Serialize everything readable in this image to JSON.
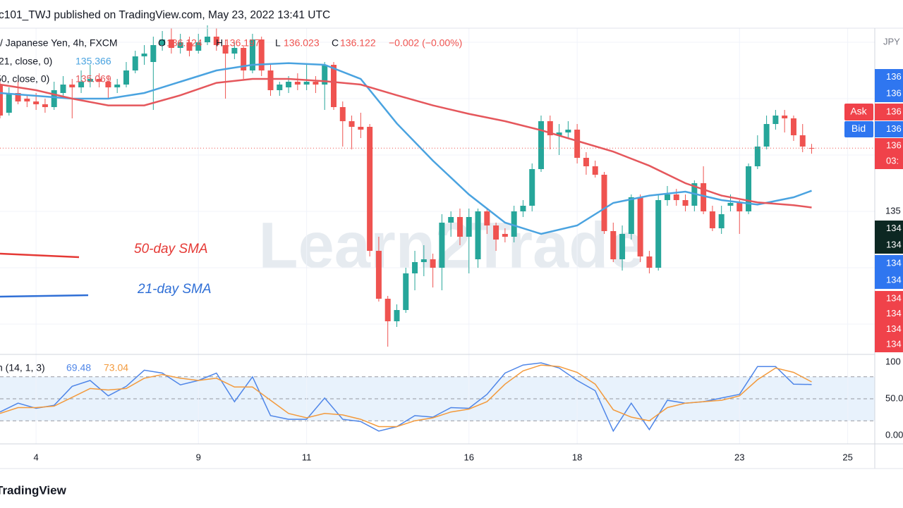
{
  "chart_data": {
    "type": "candlestick",
    "header": "c101_TWJ published on TradingView.com, May 23, 2022 13:41 UTC",
    "symbol_text": "/ Japanese Yen, 4h, FXCM",
    "ohlc_letters": [
      "O",
      "H",
      "L",
      "C"
    ],
    "change": "−0.002 (−0.00%)",
    "axis_unit": "JPY",
    "up_color": "#26a69a",
    "down_color": "#ef5350",
    "x": [
      -4,
      -3,
      -2,
      -1,
      0,
      1,
      2,
      3,
      4,
      5,
      6,
      7,
      8,
      9,
      10,
      11,
      12,
      13,
      14,
      15,
      16,
      17,
      18,
      19,
      20,
      21,
      22,
      23,
      24,
      25,
      26,
      27,
      28,
      29,
      30,
      31,
      32,
      33,
      34,
      35,
      36,
      37,
      38,
      39,
      40,
      41,
      42,
      43,
      44,
      45,
      46,
      47,
      48,
      49,
      50,
      51,
      52,
      53,
      54,
      55,
      56,
      57,
      58,
      59,
      60,
      61,
      62,
      63,
      64,
      65,
      66,
      67,
      68,
      69,
      70,
      71,
      72,
      73,
      74,
      75,
      76,
      77,
      78,
      79,
      80,
      81,
      82,
      83,
      84,
      85,
      86
    ],
    "open": [
      137.25,
      136.75,
      137.1,
      137.0,
      136.95,
      136.9,
      136.85,
      137.1,
      137.25,
      137.2,
      137.3,
      137.35,
      137.3,
      137.2,
      137.25,
      137.5,
      137.75,
      137.65,
      137.95,
      138.05,
      137.9,
      138.0,
      137.85,
      138.0,
      138.1,
      137.95,
      137.8,
      137.9,
      137.5,
      138.05,
      137.5,
      137.15,
      137.2,
      137.3,
      137.25,
      137.3,
      137.25,
      137.6,
      136.85,
      136.6,
      136.5,
      136.5,
      134.3,
      133.45,
      133.05,
      133.25,
      133.9,
      134.1,
      134.15,
      134.0,
      134.8,
      134.9,
      134.55,
      134.15,
      135.0,
      134.75,
      134.6,
      134.55,
      135.0,
      135.1,
      135.75,
      136.6,
      136.35,
      136.4,
      136.45,
      135.95,
      135.8,
      135.65,
      134.65,
      134.15,
      134.6,
      135.25,
      134.2,
      134.0,
      135.2,
      135.3,
      135.2,
      135.1,
      135.5,
      135.0,
      134.7,
      135.1,
      135.15,
      135.0,
      135.8,
      136.15,
      136.55,
      136.7,
      136.65,
      136.35,
      136.124
    ],
    "high": [
      137.35,
      137.2,
      137.3,
      137.05,
      137.1,
      137.0,
      137.3,
      137.4,
      137.35,
      137.5,
      137.6,
      137.45,
      137.4,
      137.35,
      137.65,
      137.85,
      137.95,
      138.1,
      138.2,
      138.25,
      138.15,
      138.1,
      138.15,
      138.3,
      138.25,
      138.05,
      138.0,
      137.95,
      138.15,
      138.1,
      137.6,
      137.3,
      137.4,
      137.45,
      137.6,
      137.4,
      137.65,
      137.65,
      136.95,
      136.7,
      136.75,
      136.55,
      134.55,
      133.5,
      133.35,
      134.0,
      134.3,
      134.4,
      134.25,
      134.95,
      135.0,
      135.05,
      135.05,
      135.05,
      135.05,
      134.8,
      134.7,
      135.1,
      135.2,
      135.85,
      136.7,
      136.7,
      136.55,
      136.6,
      136.55,
      136.05,
      135.9,
      135.7,
      134.8,
      134.75,
      135.3,
      135.3,
      134.3,
      135.3,
      135.45,
      135.4,
      135.3,
      135.55,
      135.8,
      135.1,
      135.1,
      135.3,
      135.2,
      135.85,
      136.35,
      136.7,
      136.8,
      136.8,
      136.7,
      136.55,
      136.197
    ],
    "low": [
      136.65,
      136.7,
      136.9,
      136.85,
      136.8,
      136.75,
      136.8,
      137.0,
      136.65,
      137.1,
      137.2,
      137.2,
      137.0,
      137.1,
      137.2,
      137.45,
      137.6,
      136.8,
      137.85,
      137.8,
      137.8,
      137.75,
      137.8,
      137.95,
      137.85,
      137.0,
      137.7,
      137.35,
      137.45,
      137.4,
      137.05,
      137.05,
      137.1,
      137.15,
      137.15,
      137.1,
      136.8,
      136.8,
      136.15,
      136.1,
      136.3,
      134.2,
      133.4,
      132.6,
      132.95,
      133.2,
      133.6,
      133.85,
      133.65,
      133.6,
      134.55,
      134.4,
      133.9,
      134.0,
      134.6,
      134.3,
      134.45,
      134.45,
      134.9,
      135.0,
      135.7,
      136.1,
      136.0,
      136.3,
      135.85,
      135.65,
      135.6,
      134.6,
      134.1,
      133.95,
      134.5,
      134.1,
      133.9,
      133.95,
      135.1,
      135.1,
      135.0,
      135.0,
      134.95,
      134.65,
      134.6,
      135.0,
      134.6,
      134.95,
      135.75,
      136.1,
      136.45,
      136.4,
      136.25,
      136.05,
      136.023
    ],
    "close": [
      136.7,
      137.1,
      136.95,
      136.95,
      136.9,
      136.85,
      137.15,
      137.25,
      137.2,
      137.3,
      137.35,
      137.3,
      137.2,
      137.25,
      137.5,
      137.75,
      137.8,
      137.95,
      138.05,
      137.9,
      138.0,
      137.85,
      138.0,
      138.1,
      137.95,
      137.8,
      137.9,
      137.5,
      138.05,
      137.5,
      137.15,
      137.25,
      137.3,
      137.25,
      137.3,
      137.25,
      137.6,
      136.85,
      136.6,
      136.5,
      136.45,
      134.3,
      133.45,
      133.05,
      133.25,
      133.9,
      134.1,
      134.15,
      134.0,
      134.8,
      134.9,
      134.55,
      134.9,
      135.0,
      134.75,
      134.5,
      134.55,
      135.0,
      135.1,
      135.75,
      136.6,
      136.35,
      136.4,
      136.45,
      135.95,
      135.8,
      135.65,
      134.65,
      134.15,
      134.6,
      135.25,
      134.2,
      134.0,
      135.2,
      135.3,
      135.2,
      135.1,
      135.5,
      135.0,
      134.7,
      134.95,
      135.15,
      135.0,
      135.8,
      136.15,
      136.55,
      136.7,
      136.65,
      136.35,
      136.15,
      136.122
    ],
    "xlim": [
      -4,
      93
    ],
    "xticks": [
      {
        "value": 0,
        "label": "4"
      },
      {
        "value": 18,
        "label": "9"
      },
      {
        "value": 30,
        "label": "11"
      },
      {
        "value": 48,
        "label": "16"
      },
      {
        "value": 60,
        "label": "18"
      },
      {
        "value": 78,
        "label": "23"
      },
      {
        "value": 90,
        "label": "25"
      }
    ],
    "ylim": [
      132.4625,
      138.25
    ],
    "yticks": [
      135
    ],
    "ygrid": [
      133,
      134,
      136,
      137,
      138
    ],
    "last_price_line": true,
    "sma": [
      {
        "name": "21, close, 0)",
        "color": "#4aa3e0",
        "x": [
          -4,
          0,
          4,
          8,
          12,
          16,
          20,
          24,
          28,
          32,
          36,
          40,
          44,
          48,
          52,
          56,
          60,
          64,
          68,
          72,
          76,
          80,
          84,
          86
        ],
        "values": [
          137.1,
          137.05,
          137.0,
          137.0,
          137.1,
          137.3,
          137.5,
          137.6,
          137.63,
          137.6,
          137.35,
          136.56,
          135.9,
          135.3,
          134.8,
          134.6,
          134.75,
          135.15,
          135.28,
          135.35,
          135.2,
          135.12,
          135.25,
          135.366
        ]
      },
      {
        "name": "50, close, 0)",
        "color": "#e5575c",
        "x": [
          -4,
          0,
          4,
          8,
          12,
          16,
          20,
          24,
          28,
          32,
          36,
          40,
          44,
          48,
          52,
          56,
          60,
          64,
          68,
          72,
          76,
          80,
          84,
          86
        ],
        "values": [
          137.25,
          137.15,
          137.0,
          136.88,
          136.88,
          137.06,
          137.28,
          137.35,
          137.35,
          137.31,
          137.25,
          137.06,
          136.88,
          136.73,
          136.6,
          136.44,
          136.25,
          136.06,
          135.81,
          135.5,
          135.28,
          135.16,
          135.11,
          135.069
        ]
      }
    ],
    "annotations": [
      {
        "text": "50-day SMA",
        "color": "#e53935"
      },
      {
        "text": "21-day SMA",
        "color": "#2f6fd6"
      }
    ],
    "watermark": "Learn2Trade",
    "price_tags": [
      {
        "labels": [
          "136",
          "136"
        ],
        "color": "#2f76f0"
      },
      {
        "side": "Ask",
        "labels": [
          "136"
        ],
        "color": "#f0424a"
      },
      {
        "side": "Bid",
        "labels": [
          "136"
        ],
        "color": "#2f76f0"
      },
      {
        "labels": [
          "136",
          "03:"
        ],
        "color": "#f0424a"
      },
      {
        "labels": [
          "134",
          "134"
        ],
        "color": "#0c2722"
      },
      {
        "labels": [
          "134",
          "134"
        ],
        "color": "#2f76f0"
      },
      {
        "labels": [
          "134",
          "134",
          "134",
          "134"
        ],
        "color": "#f0424a"
      }
    ],
    "stochastic": {
      "type": "line",
      "name": "n (14, 1, 3)",
      "ylim": [
        -11.5,
        110.5
      ],
      "yticks": [
        100,
        {
          "value": 50,
          "label": "50.0"
        },
        {
          "value": 0,
          "label": "0.00"
        }
      ],
      "levels": [
        80,
        50,
        20
      ],
      "band": [
        20,
        80
      ],
      "x": [
        -4,
        -2,
        0,
        2,
        4,
        6,
        8,
        10,
        12,
        14,
        16,
        18,
        20,
        22,
        24,
        26,
        28,
        30,
        32,
        34,
        36,
        38,
        40,
        42,
        44,
        46,
        48,
        50,
        52,
        54,
        56,
        58,
        60,
        62,
        64,
        66,
        68,
        70,
        72,
        74,
        76,
        78,
        80,
        82,
        84,
        86
      ],
      "series": [
        {
          "color": "#4f86e8",
          "values": [
            32,
            44,
            37,
            41,
            67,
            75,
            54,
            67,
            89,
            85,
            69,
            75,
            85,
            46,
            80,
            27,
            22,
            22,
            51,
            22,
            19,
            6,
            12,
            27,
            25,
            38,
            37,
            56,
            85,
            96,
            99,
            92,
            75,
            61,
            6,
            44,
            8,
            48,
            44,
            46,
            51,
            56,
            94,
            94,
            70,
            69.48
          ]
        },
        {
          "color": "#f39a3c",
          "values": [
            30,
            38,
            38,
            40,
            52,
            64,
            62,
            64,
            78,
            83,
            78,
            75,
            78,
            66,
            66,
            48,
            30,
            24,
            30,
            28,
            22,
            12,
            12,
            20,
            24,
            32,
            36,
            46,
            70,
            88,
            96,
            94,
            86,
            70,
            35,
            25,
            20,
            38,
            44,
            46,
            48,
            54,
            76,
            92,
            86,
            73.04
          ]
        }
      ]
    },
    "footer": "TradingView"
  }
}
